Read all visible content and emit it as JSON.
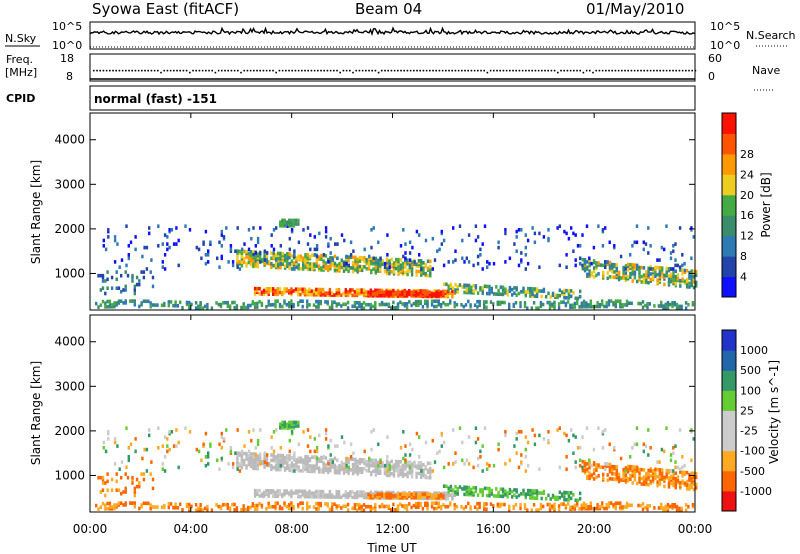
{
  "header": {
    "station": "Syowa East (fitACF)",
    "beam": "Beam 04",
    "date": "01/May/2010"
  },
  "panel_labels": {
    "nsky": "N.Sky",
    "nsearch": "N.Search",
    "freq_line1": "Freq.",
    "freq_line2": "[MHz]",
    "nave": "Nave",
    "cpid": "CPID",
    "cpid_value": "normal (fast) -151",
    "top_left_ticks": [
      "10^5",
      "10^0"
    ],
    "top_right_ticks": [
      "10^5",
      "10^0"
    ],
    "freq_left_ticks": [
      "18",
      "8"
    ],
    "freq_right_ticks": [
      "60",
      "0"
    ]
  },
  "colors": {
    "power_scale": [
      "#1010ff",
      "#2244aa",
      "#2e7ab5",
      "#3a8c6a",
      "#44aa44",
      "#eecc22",
      "#ff9900",
      "#ff5500",
      "#ff1100"
    ],
    "velocity_scale": [
      "#ee1111",
      "#ff6600",
      "#ffaa22",
      "#cccccc",
      "#cccccc",
      "#66cc33",
      "#339966",
      "#2266aa",
      "#2233cc"
    ],
    "ground_scatter": "#bbbbbb"
  },
  "chart_data": [
    {
      "type": "line",
      "title": "N.Sky / N.Search",
      "x": [
        "00:00",
        "04:00",
        "08:00",
        "12:00",
        "16:00",
        "20:00",
        "00:00"
      ],
      "ylabel": "N.Sky",
      "ylim_left": [
        "10^0",
        "10^5"
      ],
      "ylim_right": [
        "10^0",
        "10^5"
      ]
    },
    {
      "type": "line",
      "title": "Freq. / Nave",
      "ylabel": "Freq. [MHz]",
      "ylim_left": [
        8,
        18
      ],
      "ylim_right": [
        0,
        60
      ],
      "freq_value": 12
    },
    {
      "type": "heatmap",
      "quantity": "Power",
      "ylabel": "Slant Range [km]",
      "yticks": [
        1000,
        2000,
        3000,
        4000
      ],
      "ylim": [
        180,
        4600
      ],
      "colorbar_label": "Power [dB]",
      "colorbar_ticks": [
        4,
        8,
        12,
        16,
        20,
        24,
        28
      ]
    },
    {
      "type": "heatmap",
      "quantity": "Velocity",
      "ylabel": "Slant Range [km]",
      "yticks": [
        1000,
        2000,
        3000,
        4000
      ],
      "ylim": [
        180,
        4600
      ],
      "colorbar_label": "Velocity [m s^-1]",
      "colorbar_ticks": [
        -1000,
        -500,
        -100,
        -25,
        25,
        100,
        500,
        1000
      ],
      "xticks": [
        "00:00",
        "04:00",
        "08:00",
        "12:00",
        "16:00",
        "20:00",
        "00:00"
      ],
      "xlabel": "Time UT"
    }
  ]
}
